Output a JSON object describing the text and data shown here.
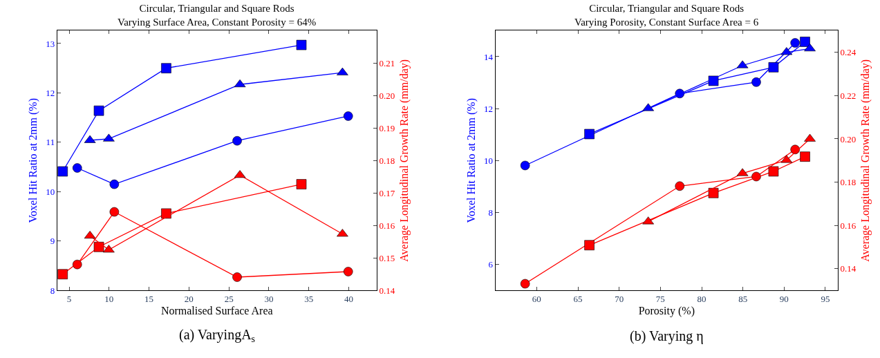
{
  "chart_data": [
    {
      "type": "line",
      "title": "Circular, Triangular and Square Rods",
      "subtitle": "Varying Surface Area, Constant Porosity = 64%",
      "xlabel": "Normalised Surface Area",
      "ylabel": "Voxel Hit Ratio at 2mm (%)",
      "y2label": "Average Longitudinal Growth Rate (mm/day)",
      "xlim": [
        3.5,
        43.5
      ],
      "xticks": [
        5,
        10,
        15,
        20,
        25,
        30,
        35,
        40
      ],
      "ylim": [
        8,
        13.26
      ],
      "yticks": [
        8,
        9,
        10,
        11,
        12,
        13
      ],
      "y2lim": [
        0.14,
        0.22
      ],
      "y2ticks": [
        0.14,
        0.15,
        0.16,
        0.17,
        0.18,
        0.19,
        {
          "value": 0.2,
          "label": "0.20"
        },
        0.21
      ],
      "annotations": [
        "(a) VaryingA$_{s}$"
      ],
      "series": [
        {
          "color": "#0000ff",
          "marker": "square",
          "x": [
            4.19,
            8.72,
            17.15,
            34.08
          ],
          "values": [
            10.41,
            11.64,
            12.5,
            12.97
          ]
        },
        {
          "color": "#0000ff",
          "marker": "triangle",
          "x": [
            7.6,
            9.96,
            26.38,
            39.22
          ],
          "values": [
            11.04,
            11.07,
            12.17,
            12.41
          ]
        },
        {
          "color": "#0000ff",
          "marker": "circle",
          "x": [
            6.01,
            10.65,
            26.03,
            39.94
          ],
          "values": [
            10.48,
            10.15,
            11.03,
            11.53
          ]
        },
        {
          "color": "#ff0000",
          "marker": "square",
          "axis": "y2",
          "x": [
            4.19,
            8.72,
            17.15,
            34.08
          ],
          "values": [
            0.145,
            0.1534,
            0.1637,
            0.1727
          ]
        },
        {
          "color": "#ff0000",
          "marker": "triangle",
          "axis": "y2",
          "x": [
            7.6,
            9.96,
            26.38,
            39.22
          ],
          "values": [
            0.1568,
            0.1525,
            0.1755,
            0.1574
          ]
        },
        {
          "color": "#ff0000",
          "marker": "circle",
          "axis": "y2",
          "x": [
            6.01,
            10.65,
            26.03,
            39.94
          ],
          "values": [
            0.148,
            0.1642,
            0.1441,
            0.1458
          ]
        }
      ]
    },
    {
      "type": "line",
      "title": "Circular, Triangular and Square Rods",
      "subtitle": "Varying Porosity, Constant Surface Area = 6",
      "xlabel": "Porosity (%)",
      "ylabel": "Voxel Hit Ratio at 2mm (%)",
      "y2label": "Average Longitudinal Growth Rate (mm/day)",
      "xlim": [
        55,
        96.5
      ],
      "xticks": [
        60,
        65,
        70,
        75,
        80,
        85,
        90,
        95
      ],
      "ylim": [
        5,
        15
      ],
      "yticks": [
        6,
        8,
        10,
        12,
        14
      ],
      "y2lim": [
        0.13,
        0.25
      ],
      "y2ticks": [
        0.14,
        0.16,
        0.18,
        {
          "value": 0.2,
          "label": "0.20"
        },
        0.22,
        0.24
      ],
      "annotations": [
        "(b) Varying η"
      ],
      "series": [
        {
          "color": "#0000ff",
          "marker": "circle",
          "x": [
            58.6,
            77.34,
            86.62,
            91.33
          ],
          "values": [
            9.81,
            12.58,
            13.02,
            14.53
          ]
        },
        {
          "color": "#0000ff",
          "marker": "square",
          "x": [
            66.39,
            81.43,
            88.71,
            92.53
          ],
          "values": [
            11.02,
            13.07,
            13.59,
            14.57
          ]
        },
        {
          "color": "#0000ff",
          "marker": "triangle",
          "x": [
            73.52,
            84.95,
            90.29,
            93.12
          ],
          "values": [
            12.01,
            13.66,
            14.17,
            14.31
          ]
        },
        {
          "color": "#ff0000",
          "marker": "circle",
          "axis": "y2",
          "x": [
            58.6,
            77.34,
            86.62,
            91.33
          ],
          "values": [
            0.1331,
            0.1782,
            0.1826,
            0.1951
          ]
        },
        {
          "color": "#ff0000",
          "marker": "square",
          "axis": "y2",
          "x": [
            66.39,
            81.43,
            88.71,
            92.53
          ],
          "values": [
            0.1509,
            0.175,
            0.185,
            0.1918
          ]
        },
        {
          "color": "#ff0000",
          "marker": "triangle",
          "axis": "y2",
          "x": [
            73.52,
            84.95,
            90.29,
            93.12
          ],
          "values": [
            0.1618,
            0.1841,
            0.1902,
            0.2
          ]
        }
      ]
    }
  ]
}
